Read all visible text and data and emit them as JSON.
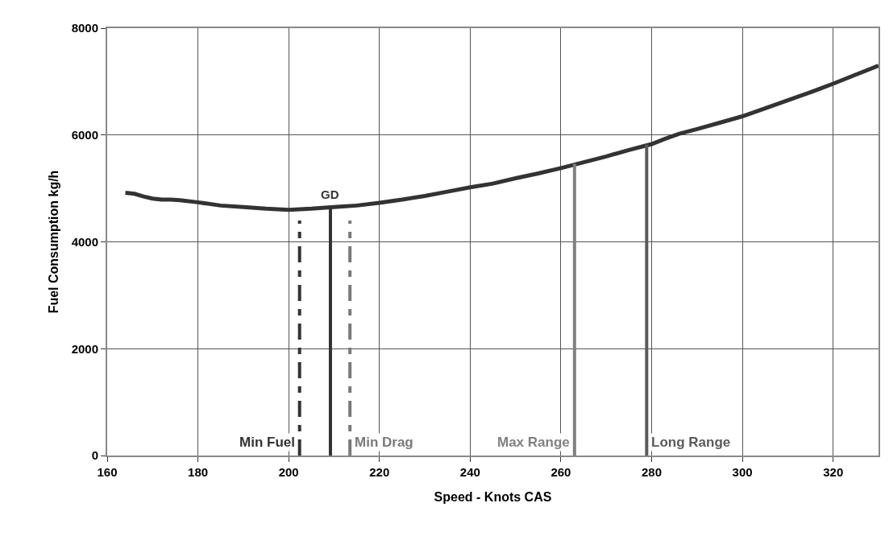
{
  "chart_data": {
    "type": "line",
    "xlabel": "Speed - Knots CAS",
    "ylabel": "Fuel Consumption kg/h",
    "xlim": [
      160,
      330
    ],
    "xticks": [
      160,
      180,
      200,
      220,
      240,
      260,
      280,
      300,
      320
    ],
    "ylim": [
      0,
      8000
    ],
    "yticks": [
      0,
      2000,
      4000,
      6000,
      8000
    ],
    "grid": true,
    "marker": "none",
    "series": [
      {
        "color": "#333333",
        "line_style": "solid",
        "x": [
          164,
          166,
          168,
          170,
          172,
          174,
          176,
          180,
          185,
          190,
          195,
          200,
          205,
          210,
          215,
          220,
          225,
          230,
          235,
          240,
          245,
          250,
          255,
          260,
          265,
          270,
          275,
          280,
          283,
          286,
          290,
          295,
          300,
          305,
          310,
          315,
          320,
          325,
          330
        ],
        "values": [
          4920,
          4900,
          4850,
          4810,
          4790,
          4790,
          4780,
          4740,
          4680,
          4650,
          4620,
          4600,
          4620,
          4650,
          4680,
          4730,
          4790,
          4860,
          4940,
          5020,
          5090,
          5190,
          5280,
          5380,
          5490,
          5600,
          5720,
          5830,
          5930,
          6020,
          6110,
          6230,
          6350,
          6500,
          6650,
          6800,
          6960,
          7130,
          7300
        ]
      },
      {
        "color": "#333333",
        "line_style": "dashed",
        "x": [
          202.4,
          202.4
        ],
        "values": [
          0,
          4400
        ]
      },
      {
        "color": "#333333",
        "line_style": "solid",
        "x": [
          209.2,
          209.2
        ],
        "values": [
          0,
          4650
        ]
      },
      {
        "color": "#7a7a7a",
        "line_style": "dashed",
        "x": [
          213.5,
          213.5
        ],
        "values": [
          0,
          4400
        ]
      },
      {
        "color": "#808080",
        "line_style": "solid",
        "x": [
          263.0,
          263.0
        ],
        "values": [
          0,
          5460
        ]
      },
      {
        "color": "#5a5a5a",
        "line_style": "solid",
        "x": [
          278.9,
          278.9
        ],
        "values": [
          0,
          5820
        ]
      }
    ],
    "annotations": [
      {
        "text": "Min Fuel",
        "x": 202.4,
        "y": 0
      },
      {
        "text": "GD",
        "x": 209.2,
        "y": 4650
      },
      {
        "text": "Min Drag",
        "x": 213.5,
        "y": 0
      },
      {
        "text": "Max Range",
        "x": 263.0,
        "y": 0
      },
      {
        "text": "Long Range",
        "x": 278.9,
        "y": 0
      }
    ]
  }
}
